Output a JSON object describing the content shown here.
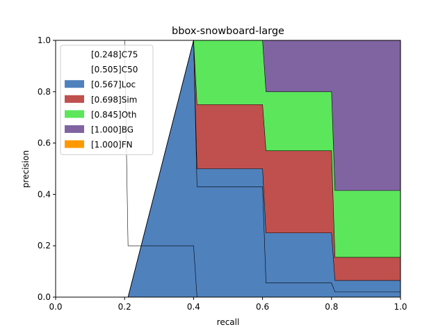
{
  "chart_data": {
    "type": "area",
    "title": "bbox-snowboard-large",
    "xlabel": "recall",
    "ylabel": "precision",
    "xlim": [
      0,
      1
    ],
    "ylim": [
      0,
      1
    ],
    "xticks": [
      "0.0",
      "0.2",
      "0.4",
      "0.6",
      "0.8",
      "1.0"
    ],
    "yticks": [
      "0.0",
      "0.2",
      "0.4",
      "0.6",
      "0.8",
      "1.0"
    ],
    "grid": false,
    "legend_position": "upper-left",
    "x": [
      0.0,
      0.2,
      0.21,
      0.4,
      0.41,
      0.6,
      0.61,
      0.8,
      0.81,
      1.0
    ],
    "series": [
      {
        "name": "[0.248]C75",
        "kind": "line",
        "color": "#000000",
        "values": [
          1.0,
          1.0,
          0.2,
          0.2,
          0.0,
          0.0,
          0.0,
          0.0,
          0.0,
          0.0
        ]
      },
      {
        "name": "[0.505]C50",
        "kind": "line",
        "color": "#000000",
        "values": [
          0.0,
          0.0,
          0.0,
          1.0,
          0.43,
          0.43,
          0.055,
          0.055,
          0.02,
          0.02
        ]
      },
      {
        "name": "[0.567]Loc",
        "kind": "area",
        "color": "#4f81bd",
        "values": [
          0.0,
          0.0,
          0.0,
          1.0,
          0.5,
          0.5,
          0.25,
          0.25,
          0.065,
          0.065
        ]
      },
      {
        "name": "[0.698]Sim",
        "kind": "area",
        "color": "#c0504d",
        "values": [
          0.0,
          0.0,
          0.0,
          1.0,
          0.75,
          0.75,
          0.57,
          0.57,
          0.155,
          0.155
        ]
      },
      {
        "name": "[0.845]Oth",
        "kind": "area",
        "color": "#5ce65c",
        "values": [
          0.0,
          0.0,
          0.0,
          1.0,
          1.0,
          1.0,
          0.8,
          0.8,
          0.415,
          0.415
        ]
      },
      {
        "name": "[1.000]BG",
        "kind": "area",
        "color": "#8064a2",
        "values": [
          0.0,
          0.0,
          0.0,
          1.0,
          1.0,
          1.0,
          1.0,
          1.0,
          1.0,
          1.0
        ]
      },
      {
        "name": "[1.000]FN",
        "kind": "area",
        "color": "#ff9900",
        "values": [
          0.0,
          0.0,
          0.0,
          1.0,
          1.0,
          1.0,
          1.0,
          1.0,
          1.0,
          1.0
        ]
      }
    ]
  }
}
